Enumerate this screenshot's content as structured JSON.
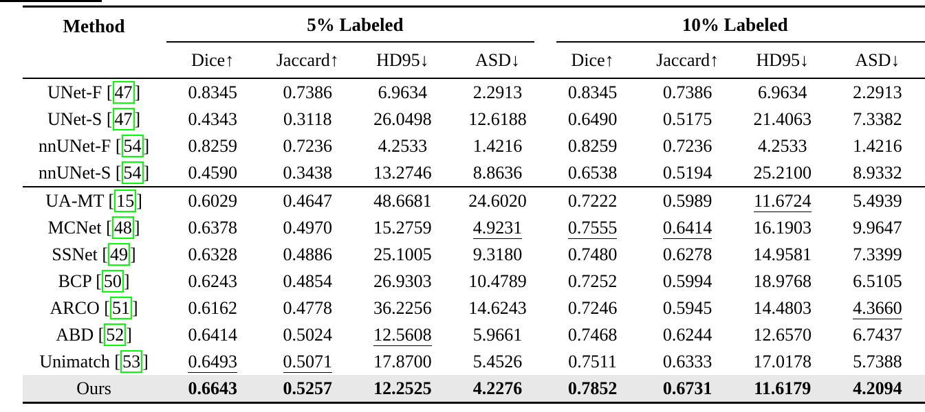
{
  "colors": {
    "citation_box": "#00fe00",
    "highlight_row": "#e8e8e8",
    "rule": "#000000"
  },
  "table": {
    "method_header": "Method",
    "group_headers": [
      "5% Labeled",
      "10% Labeled"
    ],
    "metric_headers": [
      "Dice↑",
      "Jaccard↑",
      "HD95↓",
      "ASD↓",
      "Dice↑",
      "Jaccard↑",
      "HD95↓",
      "ASD↓"
    ],
    "blocks": [
      {
        "rows": [
          {
            "method": "UNet-F",
            "citation": "47",
            "values": [
              "0.8345",
              "0.7386",
              "6.9634",
              "2.2913",
              "0.8345",
              "0.7386",
              "6.9634",
              "2.2913"
            ]
          },
          {
            "method": "UNet-S",
            "citation": "47",
            "values": [
              "0.4343",
              "0.3118",
              "26.0498",
              "12.6188",
              "0.6490",
              "0.5175",
              "21.4063",
              "7.3382"
            ]
          },
          {
            "method": "nnUNet-F",
            "citation": "54",
            "values": [
              "0.8259",
              "0.7236",
              "4.2533",
              "1.4216",
              "0.8259",
              "0.7236",
              "4.2533",
              "1.4216"
            ]
          },
          {
            "method": "nnUNet-S",
            "citation": "54",
            "values": [
              "0.4590",
              "0.3438",
              "13.2746",
              "8.8636",
              "0.6538",
              "0.5194",
              "25.2100",
              "8.9332"
            ]
          }
        ]
      },
      {
        "rows": [
          {
            "method": "UA-MT",
            "citation": "15",
            "values": [
              "0.6029",
              "0.4647",
              "48.6681",
              "24.6020",
              "0.7222",
              "0.5989",
              "11.6724",
              "5.4939"
            ],
            "underline": [
              6
            ]
          },
          {
            "method": "MCNet",
            "citation": "48",
            "values": [
              "0.6378",
              "0.4970",
              "15.2759",
              "4.9231",
              "0.7555",
              "0.6414",
              "16.1903",
              "9.9647"
            ],
            "underline": [
              3,
              4,
              5
            ]
          },
          {
            "method": "SSNet",
            "citation": "49",
            "values": [
              "0.6328",
              "0.4886",
              "25.1005",
              "9.3180",
              "0.7480",
              "0.6278",
              "14.9581",
              "7.3399"
            ]
          },
          {
            "method": "BCP",
            "citation": "50",
            "values": [
              "0.6243",
              "0.4854",
              "26.9303",
              "10.4789",
              "0.7252",
              "0.5994",
              "18.9768",
              "6.5105"
            ]
          },
          {
            "method": "ARCO",
            "citation": "51",
            "values": [
              "0.6162",
              "0.4778",
              "36.2256",
              "14.6243",
              "0.7246",
              "0.5945",
              "14.4803",
              "4.3660"
            ],
            "underline": [
              7
            ]
          },
          {
            "method": "ABD",
            "citation": "52",
            "values": [
              "0.6414",
              "0.5024",
              "12.5608",
              "5.9661",
              "0.7468",
              "0.6244",
              "12.6570",
              "6.7437"
            ],
            "underline": [
              2
            ]
          },
          {
            "method": "Unimatch",
            "citation": "53",
            "values": [
              "0.6493",
              "0.5071",
              "17.8700",
              "5.4526",
              "0.7511",
              "0.6333",
              "17.0178",
              "5.7388"
            ],
            "underline": [
              0,
              1
            ]
          },
          {
            "method": "Ours",
            "citation": null,
            "values": [
              "0.6643",
              "0.5257",
              "12.2525",
              "4.2276",
              "0.7852",
              "0.6731",
              "11.6179",
              "4.2094"
            ],
            "bold_values": true,
            "highlight": true
          }
        ]
      }
    ]
  }
}
